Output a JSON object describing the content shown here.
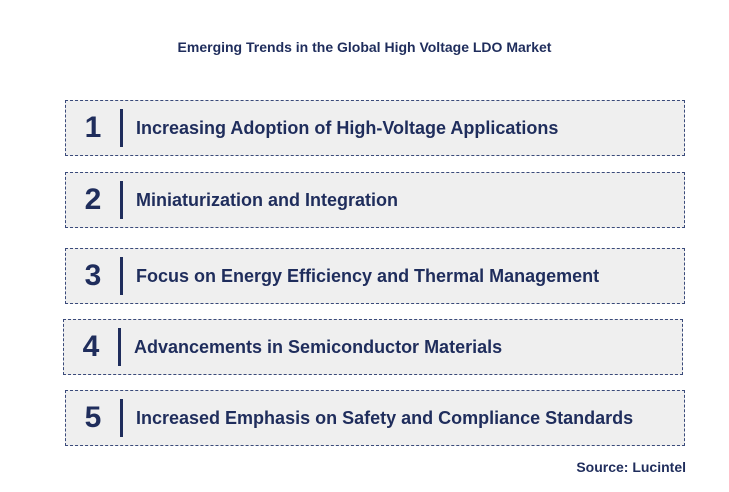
{
  "title": "Emerging Trends in the Global High Voltage LDO Market",
  "trends": [
    {
      "number": "1",
      "label": "Increasing Adoption of High-Voltage Applications"
    },
    {
      "number": "2",
      "label": "Miniaturization and Integration"
    },
    {
      "number": "3",
      "label": "Focus on Energy Efficiency and Thermal Management"
    },
    {
      "number": "4",
      "label": "Advancements in Semiconductor Materials"
    },
    {
      "number": "5",
      "label": "Increased Emphasis on Safety and Compliance Standards"
    }
  ],
  "source": "Source: Lucintel"
}
